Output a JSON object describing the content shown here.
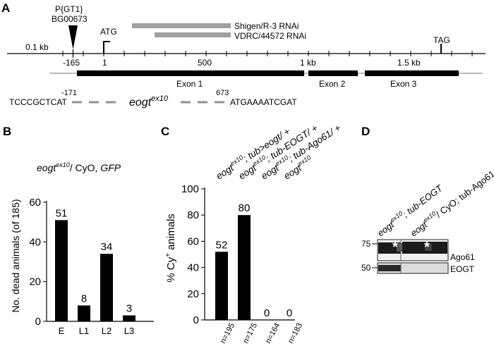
{
  "panels": {
    "a": "A",
    "b": "B",
    "c": "C",
    "d": "D"
  },
  "gene_map": {
    "insertion": {
      "line1": "P{GT1}",
      "line2": "BG00673",
      "position": -165
    },
    "atg_label": "ATG",
    "tag_label": "TAG",
    "scale_label": "0.1 kb",
    "ticks": [
      {
        "label": "-165",
        "pos": -165
      },
      {
        "label": "1",
        "pos": 1
      },
      {
        "label": "500",
        "pos": 500
      },
      {
        "label": "1 kb",
        "pos": 1000
      },
      {
        "label": "1.5 kb",
        "pos": 1500
      }
    ],
    "tag_position": 1660,
    "rnai": [
      {
        "label": "Shigen/R-3 RNAi",
        "start": 200,
        "end": 640
      },
      {
        "label": "VDRC/44572 RNAi",
        "start": 270,
        "end": 640
      }
    ],
    "exons": [
      {
        "label": "Exon 1",
        "start": -140,
        "end": 980
      },
      {
        "label": "Exon 2",
        "start": 1000,
        "end": 1240
      },
      {
        "label": "Exon 3",
        "start": 1250,
        "end": 1730
      }
    ],
    "deletion": {
      "left_seq": "TCCCGCTCAT",
      "left_pos": "-171",
      "allele_base": "eogt",
      "allele_sup": "ex10",
      "right_pos": "673",
      "right_seq": "ATGAAAATCGAT"
    }
  },
  "panel_b": {
    "genotype": {
      "base": "eogt",
      "sup": "ex10",
      "rest1": "/ CyO, ",
      "rest2": "GFP"
    },
    "chart_data": {
      "type": "bar",
      "categories": [
        "E",
        "L1",
        "L2",
        "L3"
      ],
      "values": [
        51,
        8,
        34,
        3
      ],
      "ylabel": "No. dead animals (of 185)",
      "ylim": [
        0,
        60
      ],
      "yticks": [
        0,
        20,
        40,
        60
      ]
    }
  },
  "panel_c": {
    "chart_data": {
      "type": "bar",
      "categories": [
        {
          "base": "eogt",
          "sup": "ex10",
          "rest": "; tub>eogt/ +"
        },
        {
          "base": "eogt",
          "sup": "ex10",
          "rest": "; tub-EOGT/ +"
        },
        {
          "base": "eogt",
          "sup": "ex10",
          "rest": "; tub-Ago61/ +"
        },
        {
          "base": "eogt",
          "sup": "ex10",
          "rest": ""
        }
      ],
      "values": [
        52,
        80,
        0,
        0
      ],
      "n_labels": [
        "n=195",
        "n=175",
        "n=164",
        "n=183"
      ],
      "ylabel_pre": "% Cy",
      "ylabel_sup": "+",
      "ylabel_post": " animals",
      "ylim": [
        0,
        100
      ],
      "yticks": [
        0,
        20,
        40,
        60,
        80,
        100
      ]
    }
  },
  "panel_d": {
    "lanes": [
      {
        "base": "eogt",
        "sup": "ex10",
        "rest": "; tub-EOGT"
      },
      {
        "base": "eogt",
        "sup": "ex10",
        "rest": "/ CyO; tub-Ago61"
      }
    ],
    "markers": [
      "75",
      "50"
    ],
    "bands": [
      "Ago61",
      "EOGT"
    ],
    "star": "*"
  }
}
